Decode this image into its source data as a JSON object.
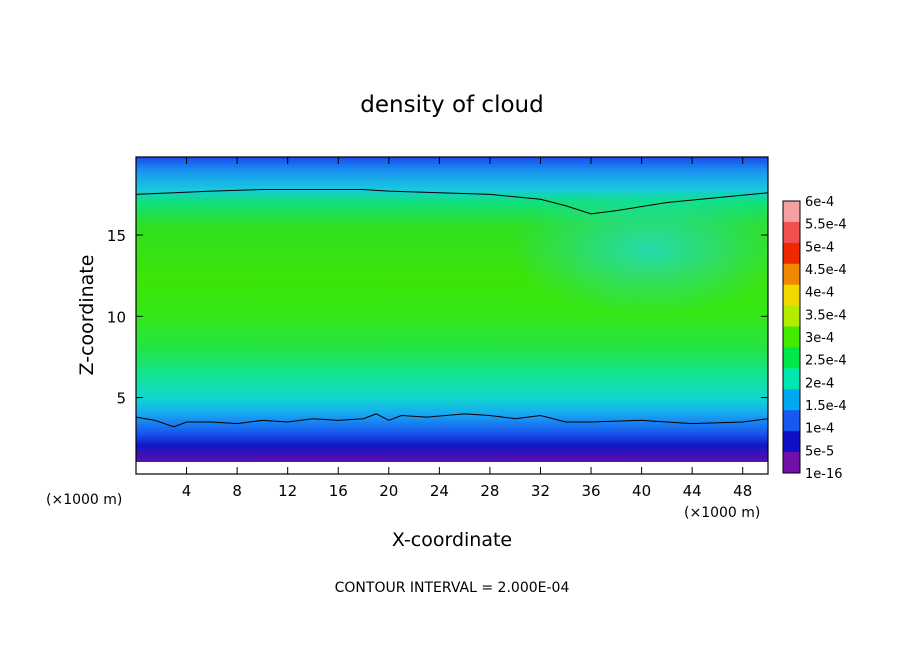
{
  "chart_data": {
    "type": "heatmap",
    "title": "density of cloud",
    "xlabel": "X-coordinate",
    "ylabel": "Z-coordinate",
    "x_unit_left": "(×1000 m)",
    "x_unit_right": "(×1000 m)",
    "footer": "CONTOUR INTERVAL = 2.000E-04",
    "xlim": [
      0,
      50
    ],
    "ylim": [
      0.3,
      19.8
    ],
    "x_ticks": [
      "4",
      "8",
      "12",
      "16",
      "20",
      "24",
      "28",
      "32",
      "36",
      "40",
      "44",
      "48"
    ],
    "x_tick_values": [
      4,
      8,
      12,
      16,
      20,
      24,
      28,
      32,
      36,
      40,
      44,
      48
    ],
    "y_ticks": [
      "5",
      "10",
      "15"
    ],
    "y_tick_values": [
      5,
      10,
      15
    ],
    "colorbar": {
      "labels": [
        "6e-4",
        "5.5e-4",
        "5e-4",
        "4.5e-4",
        "4e-4",
        "3.5e-4",
        "3e-4",
        "2.5e-4",
        "2e-4",
        "1.5e-4",
        "1e-4",
        "5e-5",
        "1e-16"
      ],
      "colors": [
        "#f4a0a0",
        "#f05050",
        "#f02800",
        "#f08800",
        "#f0d800",
        "#b4ec00",
        "#44ea00",
        "#00e848",
        "#00e8b0",
        "#00a8f0",
        "#1858f0",
        "#1010c8",
        "#7010a8"
      ]
    },
    "contour_lines": [
      {
        "level": "2e-4",
        "x": [
          0,
          6,
          10,
          14,
          18,
          20,
          24,
          28,
          32,
          34,
          36,
          38,
          42,
          46,
          50
        ],
        "y": [
          17.5,
          17.7,
          17.8,
          17.8,
          17.8,
          17.7,
          17.6,
          17.5,
          17.2,
          16.8,
          16.3,
          16.5,
          17.0,
          17.3,
          17.6
        ]
      },
      {
        "level": "2e-4",
        "x": [
          0,
          1.5,
          3,
          4,
          6,
          8,
          10,
          12,
          14,
          16,
          18,
          19,
          20,
          21,
          23,
          26,
          28,
          30,
          32,
          34,
          36,
          40,
          44,
          48,
          50
        ],
        "y": [
          3.8,
          3.6,
          3.2,
          3.5,
          3.5,
          3.4,
          3.6,
          3.5,
          3.7,
          3.6,
          3.7,
          4.0,
          3.6,
          3.9,
          3.8,
          4.0,
          3.9,
          3.7,
          3.9,
          3.5,
          3.5,
          3.6,
          3.4,
          3.5,
          3.7
        ]
      }
    ]
  }
}
